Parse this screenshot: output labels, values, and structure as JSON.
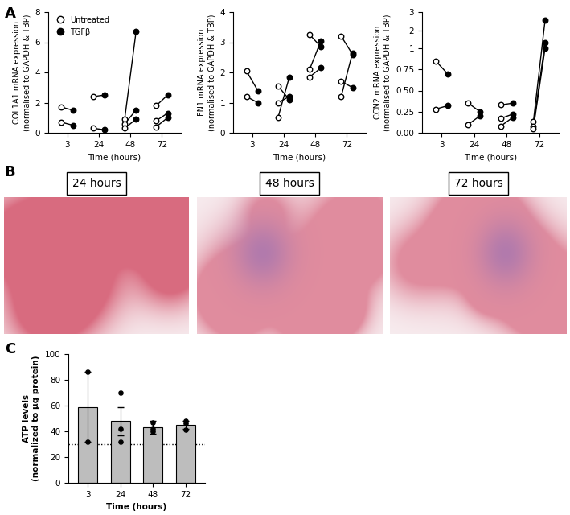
{
  "panel_labels": [
    "A",
    "B",
    "C"
  ],
  "images": [
    {
      "title": "24 hours"
    },
    {
      "title": "48 hours"
    },
    {
      "title": "72 hours"
    }
  ],
  "chart_data": [
    {
      "type": "paired",
      "categories": [
        "3",
        "24",
        "48",
        "72"
      ],
      "xlabel": "Time (hours)",
      "ylabel": "COL1A1 mRNA expression\n(normalised to GAPDH & TBP)",
      "ylim": [
        0,
        8
      ],
      "yticks": [
        0,
        2,
        4,
        6,
        8
      ],
      "legend": "upper left",
      "series": [
        {
          "name": "Untreated",
          "color": "#000000",
          "marker": "o",
          "values": [
            [
              1.7,
              0.7
            ],
            [
              2.4,
              0.3
            ],
            [
              0.9,
              0.6,
              0.3
            ],
            [
              1.8,
              0.8,
              0.4
            ]
          ]
        },
        {
          "name": "TGFβ",
          "color": "#000000",
          "marker": "o",
          "values": [
            [
              1.5,
              0.5
            ],
            [
              2.5,
              0.2
            ],
            [
              6.7,
              1.5,
              0.9
            ],
            [
              2.5,
              1.3,
              1.0
            ]
          ]
        }
      ]
    },
    {
      "type": "paired",
      "categories": [
        "3",
        "24",
        "48",
        "72"
      ],
      "xlabel": "Time (hours)",
      "ylabel": "FN1 mRNA expression\n(normalised to GAPDH & TBP)",
      "ylim": [
        0,
        4
      ],
      "yticks": [
        0,
        1,
        2,
        3,
        4
      ],
      "series": [
        {
          "color": "#000000",
          "marker": "o",
          "values": [
            [
              2.05,
              1.2
            ],
            [
              1.55,
              1.0,
              0.5
            ],
            [
              3.25,
              2.1,
              1.85
            ],
            [
              3.2,
              1.7,
              1.2
            ]
          ]
        },
        {
          "color": "#000000",
          "marker": "o",
          "values": [
            [
              1.4,
              1.0
            ],
            [
              1.1,
              1.2,
              1.85
            ],
            [
              2.85,
              3.05,
              2.15
            ],
            [
              2.6,
              1.5,
              2.65
            ]
          ]
        }
      ]
    },
    {
      "type": "paired",
      "categories": [
        "3",
        "24",
        "48",
        "72"
      ],
      "xlabel": "Time (hours)",
      "ylabel": "CCN2 mRNA expression\n(normalised to GAPDH & TBP)",
      "ylim": [
        0,
        3
      ],
      "axis_break": 1,
      "yticks": [
        {
          "value": 0,
          "label": "0.00"
        },
        0.25,
        {
          "value": 0.5,
          "label": "0.50"
        },
        0.75,
        1,
        2,
        3
      ],
      "series": [
        {
          "color": "#000000",
          "marker": "o",
          "values": [
            [
              0.85,
              0.28
            ],
            [
              0.35,
              0.1
            ],
            [
              0.33,
              0.17,
              0.08
            ],
            [
              0.13,
              0.08,
              0.05
            ]
          ]
        },
        {
          "color": "#000000",
          "marker": "o",
          "values": [
            [
              0.7,
              0.32
            ],
            [
              0.25,
              0.2
            ],
            [
              0.35,
              0.22,
              0.18
            ],
            [
              2.55,
              1.3,
              1.0
            ]
          ]
        }
      ]
    },
    {
      "type": "bar",
      "categories": [
        "3",
        "24",
        "48",
        "72"
      ],
      "values": [
        59,
        48,
        43,
        45
      ],
      "errors": [
        27,
        11,
        5,
        3
      ],
      "points": [
        [
          86,
          32
        ],
        [
          70,
          42,
          32
        ],
        [
          47,
          42,
          40
        ],
        [
          48,
          46,
          41
        ]
      ],
      "threshold": 30,
      "color": "#bdbdbd",
      "xlabel": "Time (hours)",
      "ylabel": "ATP levels\n(normalized to µg protein)",
      "ylim": [
        0,
        100
      ],
      "yticks": [
        0,
        20,
        40,
        60,
        80,
        100
      ]
    }
  ]
}
